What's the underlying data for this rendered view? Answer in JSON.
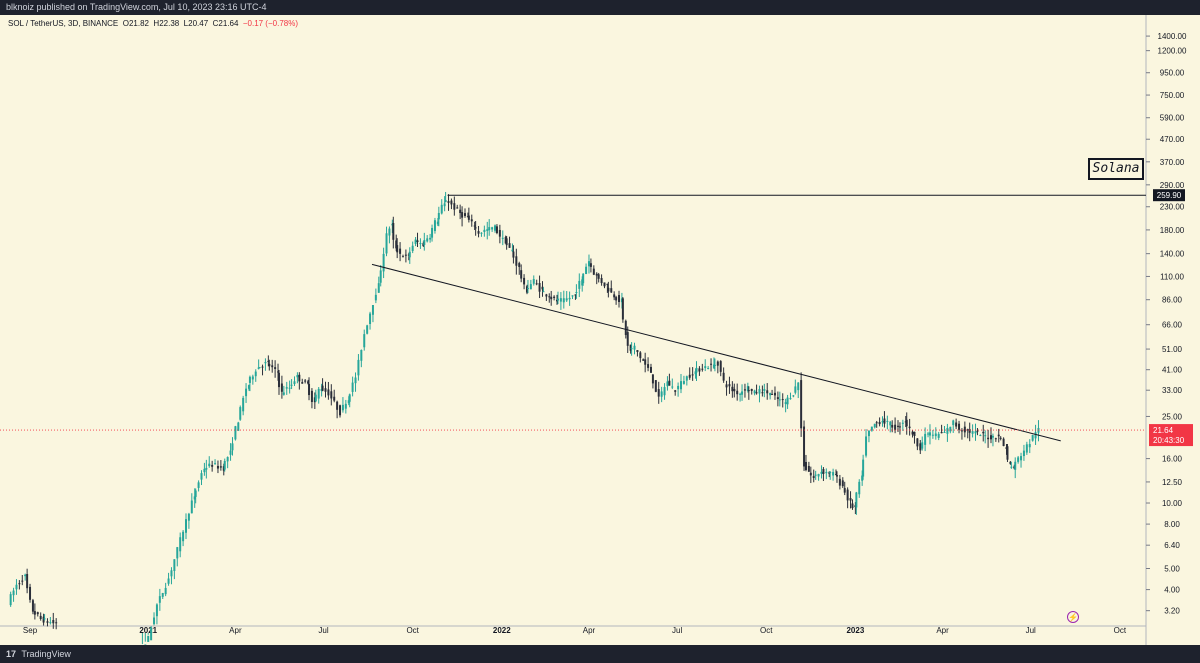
{
  "header": {
    "published_text": "blknoiz published on TradingView.com, Jul 10, 2023 23:16 UTC-4"
  },
  "legend": {
    "symbol": "SOL / TetherUS, 3D, BINANCE",
    "open": "O21.82",
    "high": "H22.38",
    "low": "L20.47",
    "close": "C21.64",
    "change": "−0.17 (−0.78%)"
  },
  "footer": {
    "brand": "TradingView",
    "logo": "tradingview-logo-icon",
    "flash_icon": "lightning-icon"
  },
  "colors": {
    "background": "#faf6df",
    "up": "#26a69a",
    "down": "#2a2e39",
    "price_line": "#f23645",
    "header_bg": "#1e222d"
  },
  "chart_data": {
    "type": "candlestick",
    "title": "Solana",
    "y_scale": "log",
    "ylim": [
      2.75,
      1750
    ],
    "y_ticks": [
      "1400.00",
      "1200.00",
      "950.00",
      "750.00",
      "590.00",
      "470.00",
      "370.00",
      "290.00",
      "230.00",
      "180.00",
      "140.00",
      "110.00",
      "86.00",
      "66.00",
      "51.00",
      "41.00",
      "33.00",
      "25.00",
      "16.00",
      "12.50",
      "10.00",
      "8.00",
      "6.40",
      "5.00",
      "4.00",
      "3.20"
    ],
    "y_tick_values": [
      1400,
      1200,
      950,
      750,
      590,
      470,
      370,
      290,
      230,
      180,
      140,
      110,
      86,
      66,
      51,
      41,
      33,
      25,
      16,
      12.5,
      10,
      8,
      6.4,
      5,
      4,
      3.2
    ],
    "x_ticks": [
      "Sep",
      "2021",
      "Apr",
      "Jul",
      "Oct",
      "2022",
      "Apr",
      "Jul",
      "Oct",
      "2023",
      "Apr",
      "Jul",
      "Oct"
    ],
    "x_tick_dates": [
      "2020-09-01",
      "2021-01-01",
      "2021-04-01",
      "2021-07-01",
      "2021-10-01",
      "2022-01-01",
      "2022-04-01",
      "2022-07-01",
      "2022-10-01",
      "2023-01-01",
      "2023-04-01",
      "2023-07-01",
      "2023-10-01"
    ],
    "xlim": [
      "2020-08-01",
      "2023-10-28"
    ],
    "bold_x_ticks": [
      "2021",
      "2022",
      "2023"
    ],
    "price_path": [
      [
        "2020-08-11",
        3.5
      ],
      [
        "2020-08-20",
        4.2
      ],
      [
        "2020-08-28",
        4.6
      ],
      [
        "2020-09-05",
        3.2
      ],
      [
        "2020-09-15",
        2.9
      ],
      [
        "2020-09-28",
        2.8
      ],
      [
        "2020-12-25",
        2.0
      ],
      [
        "2021-01-03",
        2.4
      ],
      [
        "2021-01-12",
        3.4
      ],
      [
        "2021-01-24",
        4.5
      ],
      [
        "2021-02-08",
        7.5
      ],
      [
        "2021-02-18",
        10.5
      ],
      [
        "2021-03-01",
        14.5
      ],
      [
        "2021-03-10",
        15.0
      ],
      [
        "2021-03-20",
        14.5
      ],
      [
        "2021-03-28",
        17.0
      ],
      [
        "2021-04-05",
        24.0
      ],
      [
        "2021-04-15",
        35.0
      ],
      [
        "2021-04-25",
        42.0
      ],
      [
        "2021-05-05",
        44.0
      ],
      [
        "2021-05-15",
        40.0
      ],
      [
        "2021-05-20",
        32.0
      ],
      [
        "2021-05-28",
        34.0
      ],
      [
        "2021-06-05",
        38.0
      ],
      [
        "2021-06-15",
        35.0
      ],
      [
        "2021-06-22",
        29.0
      ],
      [
        "2021-06-29",
        34.0
      ],
      [
        "2021-07-08",
        32.0
      ],
      [
        "2021-07-20",
        26.0
      ],
      [
        "2021-07-27",
        30.0
      ],
      [
        "2021-08-05",
        38.0
      ],
      [
        "2021-08-14",
        60.0
      ],
      [
        "2021-08-20",
        75.0
      ],
      [
        "2021-08-28",
        100.0
      ],
      [
        "2021-09-06",
        170.0
      ],
      [
        "2021-09-10",
        190.0
      ],
      [
        "2021-09-14",
        150.0
      ],
      [
        "2021-09-20",
        140.0
      ],
      [
        "2021-09-27",
        135.0
      ],
      [
        "2021-10-05",
        160.0
      ],
      [
        "2021-10-12",
        155.0
      ],
      [
        "2021-10-20",
        170.0
      ],
      [
        "2021-10-27",
        200.0
      ],
      [
        "2021-11-03",
        235.0
      ],
      [
        "2021-11-06",
        250.0
      ],
      [
        "2021-11-12",
        235.0
      ],
      [
        "2021-11-20",
        215.0
      ],
      [
        "2021-11-27",
        205.0
      ],
      [
        "2021-12-04",
        190.0
      ],
      [
        "2021-12-10",
        175.0
      ],
      [
        "2021-12-18",
        180.0
      ],
      [
        "2021-12-26",
        185.0
      ],
      [
        "2022-01-05",
        160.0
      ],
      [
        "2022-01-12",
        145.0
      ],
      [
        "2022-01-20",
        120.0
      ],
      [
        "2022-01-27",
        95.0
      ],
      [
        "2022-02-05",
        105.0
      ],
      [
        "2022-02-12",
        95.0
      ],
      [
        "2022-02-20",
        90.0
      ],
      [
        "2022-02-27",
        85.0
      ],
      [
        "2022-03-08",
        85.0
      ],
      [
        "2022-03-18",
        90.0
      ],
      [
        "2022-03-25",
        105.0
      ],
      [
        "2022-04-02",
        130.0
      ],
      [
        "2022-04-10",
        110.0
      ],
      [
        "2022-04-20",
        100.0
      ],
      [
        "2022-04-28",
        90.0
      ],
      [
        "2022-05-05",
        85.0
      ],
      [
        "2022-05-10",
        60.0
      ],
      [
        "2022-05-14",
        50.0
      ],
      [
        "2022-05-20",
        52.0
      ],
      [
        "2022-05-28",
        45.0
      ],
      [
        "2022-06-05",
        40.0
      ],
      [
        "2022-06-14",
        30.0
      ],
      [
        "2022-06-22",
        36.0
      ],
      [
        "2022-07-01",
        33.0
      ],
      [
        "2022-07-10",
        37.0
      ],
      [
        "2022-07-20",
        40.0
      ],
      [
        "2022-07-29",
        42.0
      ],
      [
        "2022-08-08",
        43.0
      ],
      [
        "2022-08-14",
        44.0
      ],
      [
        "2022-08-20",
        36.0
      ],
      [
        "2022-08-28",
        33.0
      ],
      [
        "2022-09-05",
        32.0
      ],
      [
        "2022-09-12",
        34.0
      ],
      [
        "2022-09-20",
        32.0
      ],
      [
        "2022-09-28",
        33.0
      ],
      [
        "2022-10-06",
        32.0
      ],
      [
        "2022-10-14",
        30.0
      ],
      [
        "2022-10-22",
        29.0
      ],
      [
        "2022-10-30",
        32.0
      ],
      [
        "2022-11-05",
        36.0
      ],
      [
        "2022-11-08",
        22.0
      ],
      [
        "2022-11-10",
        15.0
      ],
      [
        "2022-11-15",
        14.0
      ],
      [
        "2022-11-20",
        13.0
      ],
      [
        "2022-11-28",
        14.0
      ],
      [
        "2022-12-05",
        13.8
      ],
      [
        "2022-12-12",
        13.5
      ],
      [
        "2022-12-20",
        12.0
      ],
      [
        "2022-12-28",
        10.0
      ],
      [
        "2023-01-01",
        9.5
      ],
      [
        "2023-01-08",
        13.0
      ],
      [
        "2023-01-14",
        20.0
      ],
      [
        "2023-01-22",
        23.0
      ],
      [
        "2023-01-30",
        24.0
      ],
      [
        "2023-02-07",
        23.0
      ],
      [
        "2023-02-15",
        22.0
      ],
      [
        "2023-02-22",
        24.0
      ],
      [
        "2023-03-02",
        21.0
      ],
      [
        "2023-03-10",
        18.0
      ],
      [
        "2023-03-18",
        21.0
      ],
      [
        "2023-03-27",
        20.5
      ],
      [
        "2023-04-05",
        21.0
      ],
      [
        "2023-04-14",
        23.5
      ],
      [
        "2023-04-20",
        22.0
      ],
      [
        "2023-04-28",
        21.5
      ],
      [
        "2023-05-06",
        21.0
      ],
      [
        "2023-05-14",
        20.5
      ],
      [
        "2023-05-22",
        20.0
      ],
      [
        "2023-05-30",
        20.5
      ],
      [
        "2023-06-06",
        18.0
      ],
      [
        "2023-06-10",
        15.0
      ],
      [
        "2023-06-14",
        14.5
      ],
      [
        "2023-06-20",
        16.0
      ],
      [
        "2023-06-26",
        17.5
      ],
      [
        "2023-07-02",
        19.0
      ],
      [
        "2023-07-08",
        21.5
      ],
      [
        "2023-07-10",
        21.64
      ]
    ],
    "horizontal_line": {
      "value": 259.9,
      "from": "2021-11-06",
      "label": "259.90"
    },
    "trendline": {
      "from": [
        "2021-08-20",
        125.0
      ],
      "to": [
        "2023-08-01",
        19.3
      ]
    },
    "last_price": {
      "value": 21.64,
      "label": "21.64",
      "countdown": "20:43:30"
    }
  }
}
